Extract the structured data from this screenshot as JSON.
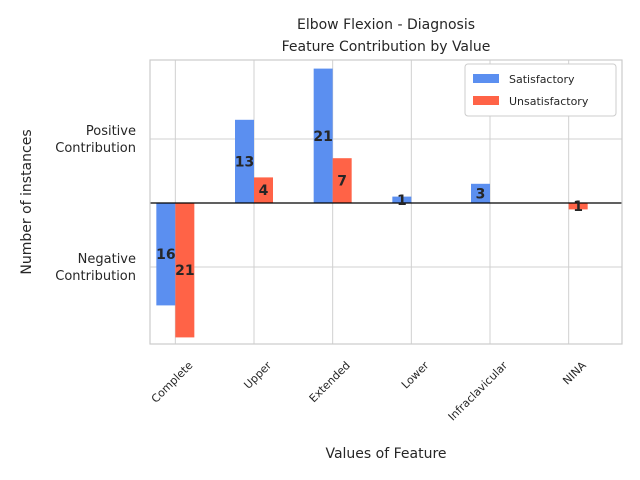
{
  "chart_data": {
    "type": "bar",
    "title": [
      "Elbow Flexion - Diagnosis",
      "Feature Contribution by Value"
    ],
    "xlabel": "Values of Feature",
    "ylabel": "Number of instances",
    "categories": [
      "Complete",
      "Upper",
      "Extended",
      "Lower",
      "Infraclavicular",
      "NINA"
    ],
    "yticks": [
      {
        "value": 10,
        "label": [
          "Positive",
          "Contribution"
        ]
      },
      {
        "value": -10,
        "label": [
          "Negative",
          "Contribution"
        ]
      }
    ],
    "ylim": [
      -22,
      22
    ],
    "series": [
      {
        "name": "Satisfactory",
        "color": "#5b8ff0",
        "values": [
          -16,
          13,
          21,
          1,
          3,
          0
        ],
        "labels": [
          "16",
          "13",
          "21",
          "1",
          "3",
          null
        ]
      },
      {
        "name": "Unsatisfactory",
        "color": "#ff6347",
        "values": [
          -21,
          4,
          7,
          0,
          0,
          -1
        ],
        "labels": [
          "21",
          "4",
          "7",
          null,
          null,
          "1"
        ]
      }
    ],
    "legend": "top-right",
    "grid": true
  }
}
